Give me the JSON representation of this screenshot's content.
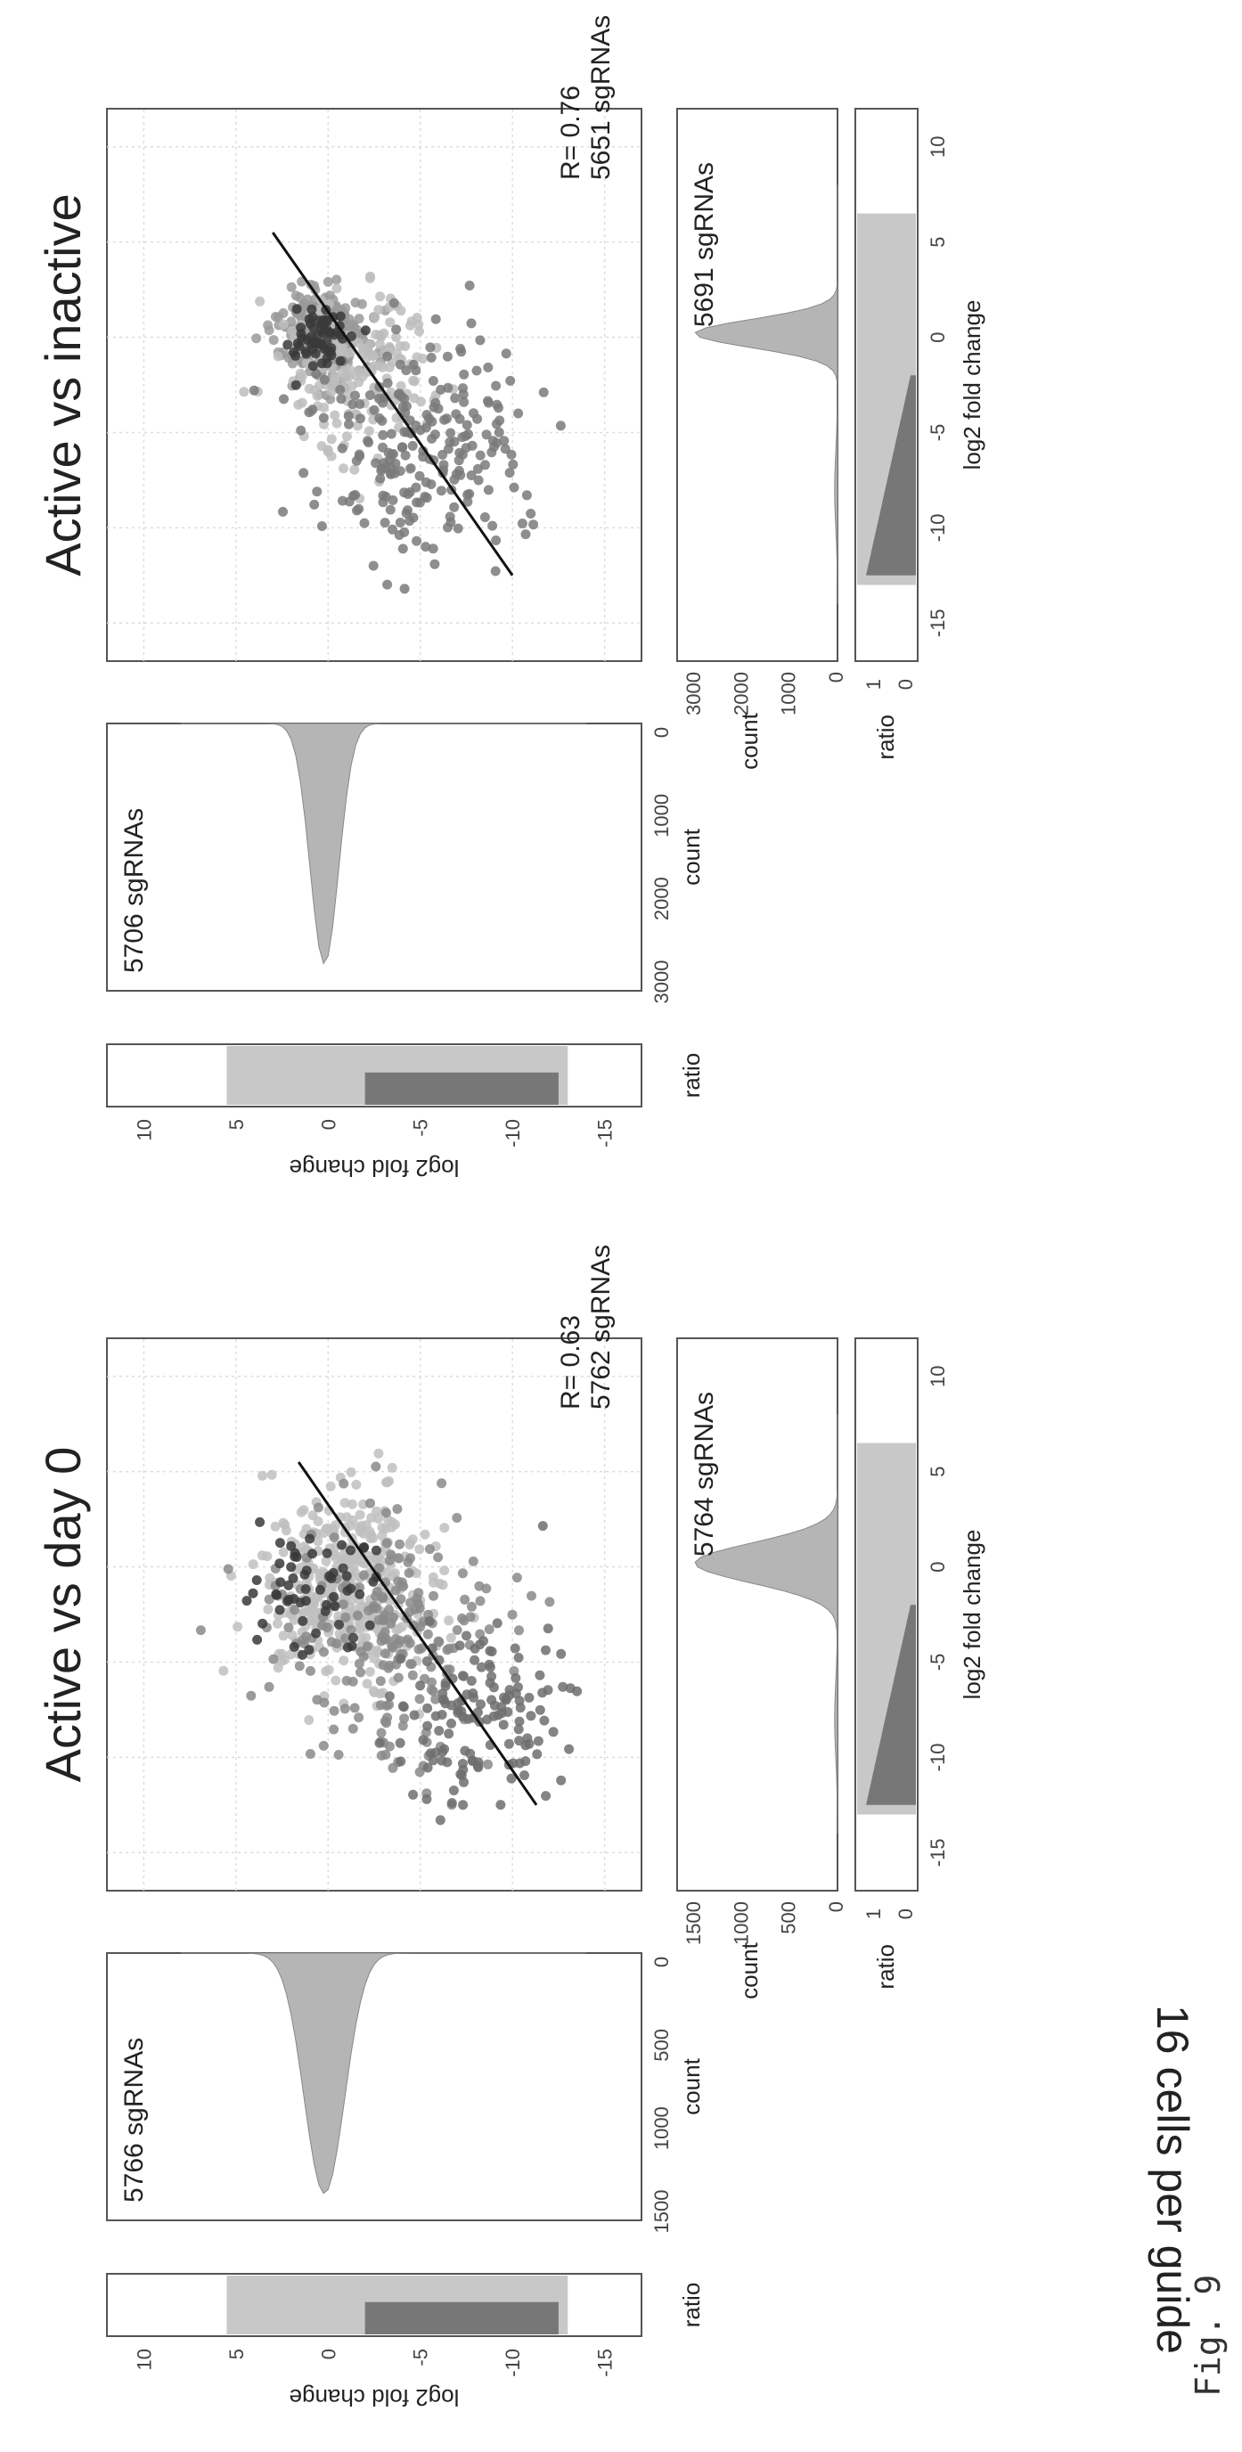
{
  "figure_label": "Fig. 9",
  "row_label": "16 cells per guide",
  "chart_data": [
    {
      "type": "scatter",
      "title": "Active vs day 0",
      "xlabel": "log2 fold change",
      "ylabel": "log2 fold change",
      "r_text": "R= 0.63",
      "n_text": "5762 sgRNAs",
      "top_hist_text": "5764 sgRNAs",
      "side_hist_text": "5766 sgRNAs",
      "xlim": [
        -17,
        12
      ],
      "ylim": [
        -17,
        12
      ],
      "xticks": [
        "-15",
        "-10",
        "-5",
        "0",
        "5",
        "10"
      ],
      "yticks": [
        "10",
        "5",
        "0",
        "-5",
        "-10",
        "-15"
      ],
      "count_ticks": [
        "0",
        "500",
        "1000",
        "1500"
      ],
      "count_label": "count",
      "ratio_label": "ratio",
      "ratio_ticks": [
        "1",
        "0"
      ],
      "fit_line": [
        [
          -12.5,
          -11.3
        ],
        [
          5.5,
          1.6
        ]
      ],
      "clusters": [
        {
          "cx": -1.0,
          "cy": -1.0,
          "sx": 2.5,
          "sy": 2.3,
          "n": 380,
          "color": "#bfbfbf"
        },
        {
          "cx": -4.0,
          "cy": -3.0,
          "sx": 3.0,
          "sy": 3.2,
          "n": 210,
          "color": "#8a8a8a"
        },
        {
          "cx": -8.0,
          "cy": -8.0,
          "sx": 2.2,
          "sy": 2.3,
          "n": 140,
          "color": "#6f6f6f"
        },
        {
          "cx": -1.5,
          "cy": 1.0,
          "sx": 1.5,
          "sy": 2.0,
          "n": 60,
          "color": "#3a3a3a"
        }
      ],
      "seed": 11,
      "side_hist_max": 1500,
      "top_hist_max": 1500
    },
    {
      "type": "scatter",
      "title": "Active vs inactive",
      "xlabel": "log2 fold change",
      "ylabel": "log2 fold change",
      "r_text": "R= 0.76",
      "n_text": "5651 sgRNAs",
      "top_hist_text": "5691 sgRNAs",
      "side_hist_text": "5706 sgRNAs",
      "xlim": [
        -17,
        12
      ],
      "ylim": [
        -17,
        12
      ],
      "xticks": [
        "-15",
        "-10",
        "-5",
        "0",
        "5",
        "10"
      ],
      "yticks": [
        "10",
        "5",
        "0",
        "-5",
        "-10",
        "-15"
      ],
      "count_ticks": [
        "0",
        "1000",
        "2000",
        "3000"
      ],
      "count_label": "count",
      "ratio_label": "ratio",
      "ratio_ticks": [
        "1",
        "0"
      ],
      "fit_line": [
        [
          -12.5,
          -10.0
        ],
        [
          5.5,
          3.0
        ]
      ],
      "clusters": [
        {
          "cx": 0.0,
          "cy": 0.2,
          "sx": 1.2,
          "sy": 1.2,
          "n": 260,
          "color": "#9a9a9a"
        },
        {
          "cx": -2.0,
          "cy": -1.5,
          "sx": 2.2,
          "sy": 2.2,
          "n": 180,
          "color": "#bdbdbd"
        },
        {
          "cx": -6.0,
          "cy": -5.5,
          "sx": 3.0,
          "sy": 3.0,
          "n": 230,
          "color": "#7a7a7a"
        },
        {
          "cx": 0.0,
          "cy": 0.5,
          "sx": 0.8,
          "sy": 0.8,
          "n": 60,
          "color": "#3a3a3a"
        }
      ],
      "seed": 23,
      "side_hist_max": 3000,
      "top_hist_max": 3000
    }
  ]
}
